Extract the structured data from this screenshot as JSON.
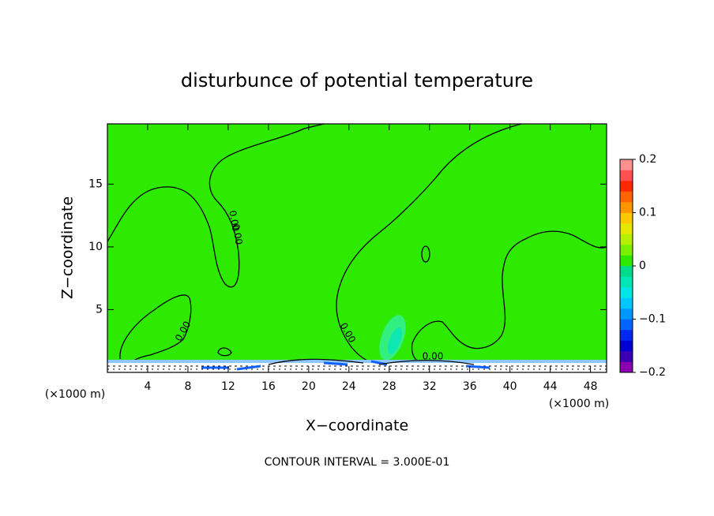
{
  "chart_data": {
    "type": "contour",
    "title": "disturbunce of potential temperature",
    "x_label": "X−coordinate",
    "y_label": "Z−coordinate",
    "x_unit": "(×1000 m)",
    "footnote": "CONTOUR INTERVAL = 3.000E-01",
    "contour_label": "0.00",
    "xlim": [
      0,
      49.6
    ],
    "ylim": [
      0,
      19.8
    ],
    "xticks": [
      4,
      8,
      12,
      16,
      20,
      24,
      28,
      32,
      36,
      40,
      44,
      48
    ],
    "yticks": [
      5,
      10,
      15
    ],
    "fill_color": "#2eea00",
    "colorbar_lim": [
      -0.2,
      0.2
    ],
    "colorbar_ticks": [
      {
        "value": -0.2,
        "label": "−0.2"
      },
      {
        "value": -0.1,
        "label": "−0.1"
      },
      0,
      0.1,
      0.2
    ],
    "colorbar_colors": [
      "#8a00b0",
      "#3c00b4",
      "#0000d2",
      "#0028f0",
      "#0064ff",
      "#0096ff",
      "#00c8ff",
      "#00e6e6",
      "#00e6b4",
      "#00dc8c",
      "#2eea00",
      "#78f000",
      "#b4f000",
      "#e6e600",
      "#ffc800",
      "#ff9600",
      "#ff6400",
      "#ff2800",
      "#ff5050",
      "#ff9090"
    ]
  }
}
